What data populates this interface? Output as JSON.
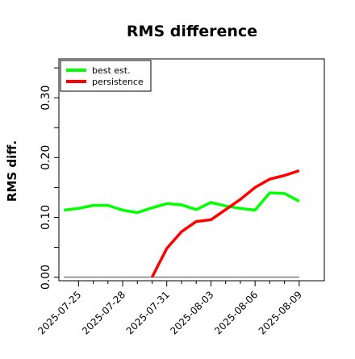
{
  "chart_data": {
    "type": "line",
    "title": "RMS difference",
    "xlabel": "",
    "ylabel": "RMS diff.",
    "ylim": [
      -0.006,
      0.365
    ],
    "yticks": [
      0.0,
      0.05,
      0.1,
      0.15,
      0.2,
      0.25,
      0.3,
      0.35
    ],
    "ytick_labels": [
      "0.00",
      "",
      "0.10",
      "",
      "0.20",
      "",
      "0.30",
      ""
    ],
    "xlim": [
      "2025-07-23T16:00",
      "2025-08-10T17:00"
    ],
    "xticks": [
      {
        "date": "2025-07-25",
        "label": "2025-07-25"
      },
      {
        "date": "2025-07-28",
        "label": "2025-07-28"
      },
      {
        "date": "2025-07-31",
        "label": "2025-07-31"
      },
      {
        "date": "2025-08-03",
        "label": "2025-08-03"
      },
      {
        "date": "2025-08-06",
        "label": "2025-08-06"
      },
      {
        "date": "2025-08-09",
        "label": "2025-08-09"
      }
    ],
    "minor_xticks": [
      "2025-07-26",
      "2025-07-27",
      "2025-07-29",
      "2025-07-30",
      "2025-08-01",
      "2025-08-02",
      "2025-08-04",
      "2025-08-05",
      "2025-08-07",
      "2025-08-08"
    ],
    "reference_line": {
      "y": 0.0,
      "from": "2025-07-24",
      "to": "2025-08-09",
      "color": "#808080"
    },
    "legend": {
      "position": "top-left"
    },
    "series": [
      {
        "name": "best est.",
        "color": "#00ff00",
        "x": [
          "2025-07-24",
          "2025-07-25",
          "2025-07-26",
          "2025-07-27",
          "2025-07-28",
          "2025-07-29",
          "2025-07-30",
          "2025-07-31",
          "2025-08-01",
          "2025-08-02",
          "2025-08-03",
          "2025-08-04",
          "2025-08-05",
          "2025-08-06",
          "2025-08-07",
          "2025-08-08",
          "2025-08-09"
        ],
        "y": [
          0.112,
          0.115,
          0.12,
          0.12,
          0.112,
          0.108,
          0.116,
          0.123,
          0.121,
          0.113,
          0.125,
          0.119,
          0.115,
          0.112,
          0.141,
          0.14,
          0.127
        ]
      },
      {
        "name": "persistence",
        "color": "#ff0000",
        "x": [
          "2025-07-30",
          "2025-07-31",
          "2025-08-01",
          "2025-08-02",
          "2025-08-03",
          "2025-08-04",
          "2025-08-05",
          "2025-08-06",
          "2025-08-07",
          "2025-08-08",
          "2025-08-09"
        ],
        "y": [
          0.0,
          0.048,
          0.076,
          0.093,
          0.096,
          0.113,
          0.13,
          0.15,
          0.164,
          0.17,
          0.178
        ]
      }
    ]
  }
}
